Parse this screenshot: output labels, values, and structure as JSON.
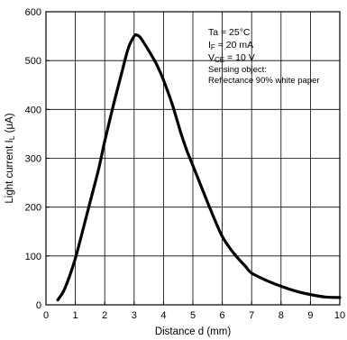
{
  "chart_data": {
    "type": "line",
    "xlabel": "Distance d (mm)",
    "ylabel": "Light current I",
    "ylabel_sub": "L",
    "ylabel_unit": " (μA)",
    "xlim": [
      0,
      10
    ],
    "ylim": [
      0,
      600
    ],
    "grid": true,
    "x_ticks": [
      "0",
      "1",
      "2",
      "3",
      "4",
      "5",
      "6",
      "7",
      "8",
      "9",
      "10"
    ],
    "y_ticks": [
      "0",
      "100",
      "200",
      "300",
      "400",
      "500",
      "600"
    ],
    "conditions": {
      "ta": "Ta = 25°C",
      "if_main": "I",
      "if_sub": "F",
      "if_val": " = 20 mA",
      "vce_main": "V",
      "vce_sub": "CE",
      "vce_val": " = 10 V",
      "sensing": "Sensing object:",
      "reflectance": "Reflectance 90% white paper"
    },
    "series": [
      {
        "x": [
          0.4,
          0.6,
          0.8,
          1.0,
          1.2,
          1.5,
          1.8,
          2.0,
          2.3,
          2.6,
          2.8,
          3.0,
          3.1,
          3.2,
          3.4,
          3.6,
          3.8,
          4.0,
          4.3,
          4.6,
          4.8,
          5.0,
          5.3,
          5.6,
          6.0,
          6.4,
          6.8,
          7.0,
          7.5,
          8.0,
          8.5,
          9.0,
          9.5,
          10.0
        ],
        "y": [
          10,
          28,
          58,
          95,
          140,
          210,
          280,
          335,
          410,
          480,
          525,
          550,
          552,
          548,
          530,
          510,
          488,
          460,
          410,
          350,
          315,
          285,
          240,
          195,
          140,
          105,
          78,
          65,
          50,
          38,
          28,
          21,
          16,
          15
        ]
      }
    ]
  }
}
